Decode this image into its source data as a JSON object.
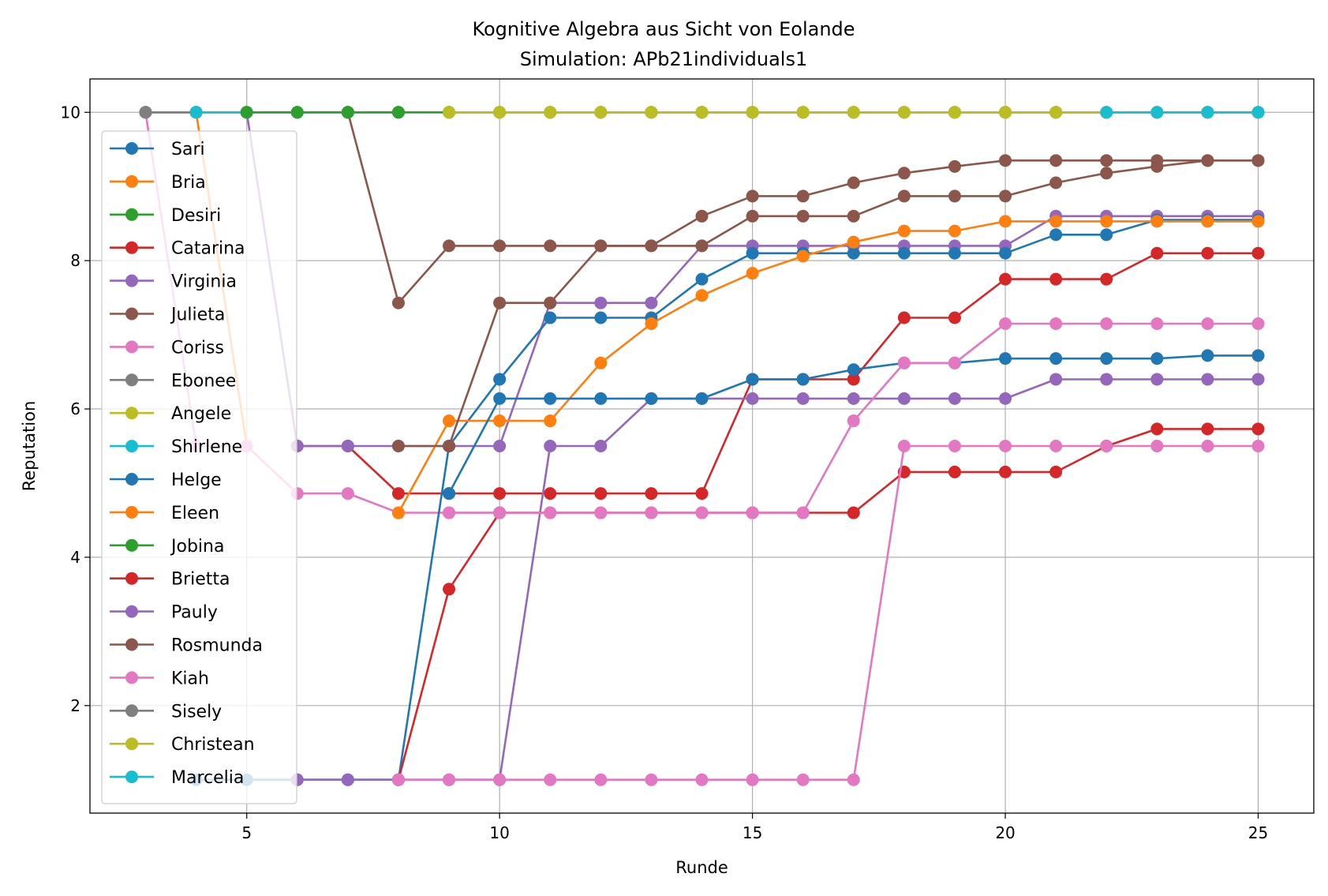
{
  "chart_data": {
    "type": "line",
    "title": "Kognitive Algebra aus Sicht von Eolande",
    "subtitle": "Simulation: APb21individuals1",
    "xlabel": "Runde",
    "ylabel": "Reputation",
    "xlim": [
      1.9,
      26.1
    ],
    "ylim": [
      0.55,
      10.45
    ],
    "xticks": [
      5,
      10,
      15,
      20,
      25
    ],
    "yticks": [
      2,
      4,
      6,
      8,
      10
    ],
    "grid": true,
    "legend_position": "upper-left",
    "series": [
      {
        "name": "Sari",
        "color": "#1f77b4",
        "x": [
          3,
          4,
          5,
          6,
          7,
          8,
          9,
          10,
          11,
          12,
          13,
          14,
          15,
          16,
          17,
          18,
          19,
          20,
          21,
          22,
          23,
          24,
          25
        ],
        "y": [
          10,
          10,
          10,
          10,
          10,
          10,
          10,
          10,
          10,
          10,
          10,
          10,
          10,
          10,
          10,
          10,
          10,
          10,
          10,
          10,
          10,
          10,
          10
        ]
      },
      {
        "name": "Bria",
        "color": "#ff7f0e",
        "x": [
          4,
          5
        ],
        "y": [
          10,
          5.5
        ]
      },
      {
        "name": "Desiri",
        "color": "#2ca02c",
        "x": [
          3,
          4,
          5,
          6,
          7,
          8,
          9,
          10,
          11,
          12,
          13,
          14,
          15,
          16,
          17,
          18,
          19,
          20,
          21,
          22,
          23,
          24,
          25
        ],
        "y": [
          10,
          10,
          10,
          10,
          10,
          10,
          10,
          10,
          10,
          10,
          10,
          10,
          10,
          10,
          10,
          10,
          10,
          10,
          10,
          10,
          10,
          10,
          10
        ]
      },
      {
        "name": "Catarina",
        "color": "#d62728",
        "x": [
          6,
          7,
          8,
          9,
          10,
          11,
          12,
          13,
          14,
          15,
          16,
          17,
          18,
          19,
          20,
          21,
          22,
          23,
          24,
          25
        ],
        "y": [
          5.5,
          5.5,
          4.86,
          4.86,
          4.86,
          4.86,
          4.86,
          4.86,
          4.86,
          6.4,
          6.4,
          6.4,
          7.23,
          7.23,
          7.75,
          7.75,
          7.75,
          8.1,
          8.1,
          8.1
        ]
      },
      {
        "name": "Virginia",
        "color": "#9467bd",
        "x": [
          5,
          6,
          7,
          8,
          9,
          10,
          11,
          12,
          13,
          14,
          15,
          16,
          17,
          18,
          19,
          20,
          21,
          22,
          23,
          24,
          25
        ],
        "y": [
          10,
          5.5,
          5.5,
          5.5,
          5.5,
          5.5,
          7.43,
          7.43,
          7.43,
          8.2,
          8.2,
          8.2,
          8.2,
          8.2,
          8.2,
          8.2,
          8.6,
          8.6,
          8.6,
          8.6,
          8.6
        ]
      },
      {
        "name": "Julieta",
        "color": "#8c564b",
        "x": [
          7,
          8,
          9,
          10,
          11,
          12,
          13,
          14,
          15,
          16,
          17,
          18,
          19,
          20,
          21,
          22,
          23,
          24,
          25
        ],
        "y": [
          10,
          7.43,
          8.2,
          8.2,
          8.2,
          8.2,
          8.2,
          8.6,
          8.87,
          8.87,
          9.05,
          9.18,
          9.27,
          9.35,
          9.35,
          9.35,
          9.35,
          9.35,
          9.35
        ]
      },
      {
        "name": "Coriss",
        "color": "#e377c2",
        "x": [
          3,
          4,
          5,
          6,
          7,
          8,
          9,
          10
        ],
        "y": [
          10,
          5.5,
          5.5,
          4.86,
          4.86,
          4.6,
          4.6,
          4.6
        ]
      },
      {
        "name": "Ebonee",
        "color": "#7f7f7f",
        "x": [
          3,
          4
        ],
        "y": [
          10,
          10
        ]
      },
      {
        "name": "Angele",
        "color": "#bcbd22",
        "x": [
          9,
          10,
          11,
          12,
          13,
          14,
          15,
          16,
          17,
          18,
          19,
          20,
          21,
          22,
          23,
          24,
          25
        ],
        "y": [
          10,
          10,
          10,
          10,
          10,
          10,
          10,
          10,
          10,
          10,
          10,
          10,
          10,
          10,
          10,
          10,
          10
        ]
      },
      {
        "name": "Shirlene",
        "color": "#17becf",
        "x": [
          4,
          5
        ],
        "y": [
          10,
          10
        ]
      },
      {
        "name": "Helge",
        "color": "#1f77b4",
        "x": [
          4,
          5,
          6,
          7,
          8,
          9,
          10,
          11,
          12,
          13,
          14,
          15,
          16,
          17,
          18,
          19,
          20,
          21,
          22,
          23,
          24,
          25
        ],
        "y": [
          1,
          1,
          1,
          1,
          1,
          5.5,
          6.4,
          7.23,
          7.23,
          7.23,
          7.75,
          8.1,
          8.1,
          8.1,
          8.1,
          8.1,
          8.1,
          8.35,
          8.35,
          8.55,
          8.55,
          8.55
        ]
      },
      {
        "name": "Eleen",
        "color": "#ff7f0e",
        "x": [
          8,
          9,
          10,
          11,
          12,
          13,
          14,
          15,
          16,
          17,
          18,
          19,
          20,
          21,
          22,
          23,
          24,
          25
        ],
        "y": [
          4.6,
          5.84,
          5.84,
          5.84,
          6.62,
          7.15,
          7.53,
          7.83,
          8.06,
          8.25,
          8.4,
          8.4,
          8.53,
          8.53,
          8.53,
          8.53,
          8.53,
          8.53
        ]
      },
      {
        "name": "Jobina",
        "color": "#2ca02c",
        "x": [
          5,
          6,
          7,
          8
        ],
        "y": [
          10,
          10,
          10,
          10
        ]
      },
      {
        "name": "Brietta",
        "color": "#d62728",
        "x": [
          8,
          9,
          10,
          11,
          12,
          13,
          14,
          15,
          16,
          17,
          18,
          19,
          20,
          21,
          22,
          23,
          24,
          25
        ],
        "y": [
          1,
          3.57,
          4.6,
          4.6,
          4.6,
          4.6,
          4.6,
          4.6,
          4.6,
          4.6,
          5.15,
          5.15,
          5.15,
          5.15,
          5.5,
          5.73,
          5.73,
          5.73
        ]
      },
      {
        "name": "Pauly",
        "color": "#9467bd",
        "x": [
          6,
          7,
          8,
          9,
          10,
          11,
          12,
          13,
          14,
          15,
          16,
          17,
          18,
          19,
          20,
          21,
          22,
          23,
          24,
          25
        ],
        "y": [
          1,
          1,
          1,
          1,
          1,
          5.5,
          5.5,
          6.14,
          6.14,
          6.14,
          6.14,
          6.14,
          6.14,
          6.14,
          6.14,
          6.4,
          6.4,
          6.4,
          6.4,
          6.4
        ]
      },
      {
        "name": "Rosmunda",
        "color": "#8c564b",
        "x": [
          8,
          9,
          10,
          11,
          12,
          13,
          14,
          15,
          16,
          17,
          18,
          19,
          20,
          21,
          22,
          23,
          24,
          25
        ],
        "y": [
          5.5,
          5.5,
          7.43,
          7.43,
          8.2,
          8.2,
          8.2,
          8.6,
          8.6,
          8.6,
          8.87,
          8.87,
          8.87,
          9.05,
          9.18,
          9.27,
          9.35,
          9.35
        ]
      },
      {
        "name": "Kiah",
        "color": "#e377c2",
        "x": [
          8,
          9,
          10,
          11,
          12,
          13,
          14,
          15,
          16,
          17,
          18,
          19,
          20,
          21,
          22,
          23,
          24,
          25
        ],
        "y": [
          1,
          1,
          1,
          1,
          1,
          1,
          1,
          1,
          1,
          1,
          5.5,
          5.5,
          5.5,
          5.5,
          5.5,
          5.5,
          5.5,
          5.5
        ]
      },
      {
        "name": "Sisely",
        "color": "#7f7f7f",
        "x": [
          3
        ],
        "y": [
          10
        ]
      },
      {
        "name": "Christean",
        "color": "#bcbd22",
        "x": [
          9,
          10,
          11,
          12,
          13,
          14,
          15,
          16,
          17,
          18,
          19,
          20,
          21,
          22
        ],
        "y": [
          10,
          10,
          10,
          10,
          10,
          10,
          10,
          10,
          10,
          10,
          10,
          10,
          10,
          10
        ]
      },
      {
        "name": "Marcelia",
        "color": "#17becf",
        "x": [
          22,
          23,
          24,
          25
        ],
        "y": [
          10,
          10,
          10,
          10
        ]
      },
      {
        "name": "",
        "color": "#1f77b4",
        "x": [
          9,
          10,
          11,
          12,
          13,
          14,
          15,
          16,
          17,
          18,
          19,
          20,
          21,
          22,
          23,
          24,
          25
        ],
        "y": [
          4.86,
          6.14,
          6.14,
          6.14,
          6.14,
          6.14,
          6.4,
          6.4,
          6.53,
          6.62,
          6.62,
          6.68,
          6.68,
          6.68,
          6.68,
          6.72,
          6.72
        ]
      },
      {
        "name": "",
        "color": "#e377c2",
        "x": [
          9,
          10,
          11,
          12,
          13,
          14,
          15,
          16,
          17,
          18,
          19,
          20,
          21,
          22,
          23,
          24,
          25
        ],
        "y": [
          4.6,
          4.6,
          4.6,
          4.6,
          4.6,
          4.6,
          4.6,
          4.6,
          5.84,
          6.62,
          6.62,
          7.15,
          7.15,
          7.15,
          7.15,
          7.15,
          7.15
        ]
      }
    ]
  }
}
